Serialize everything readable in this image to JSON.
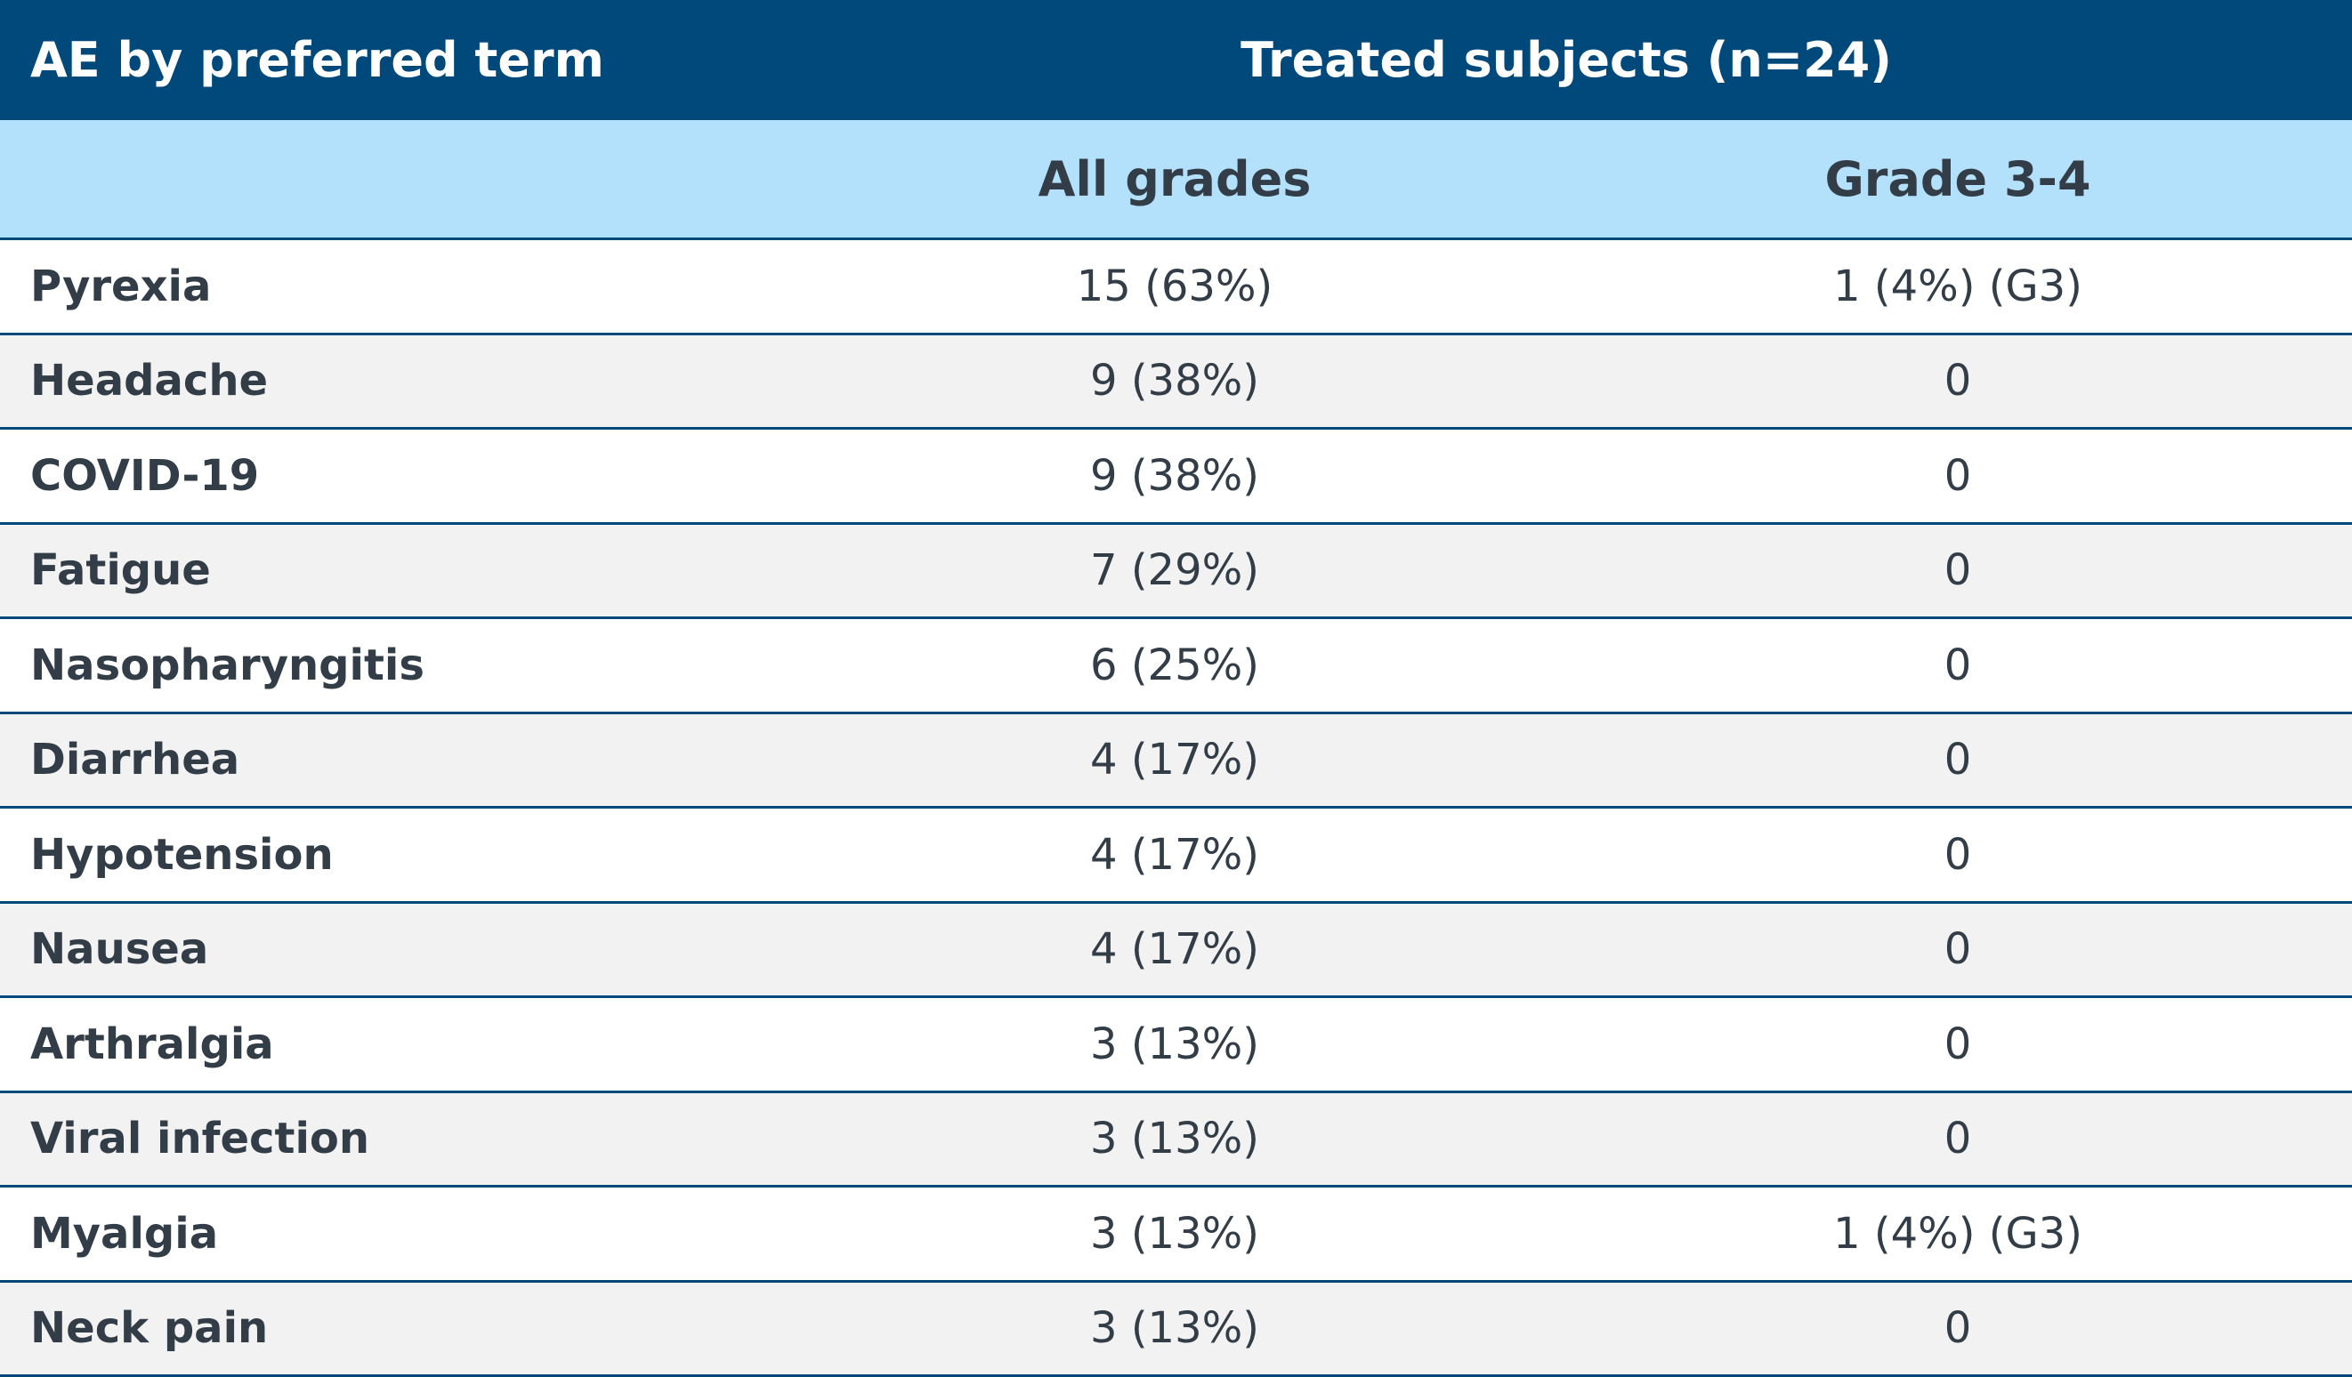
{
  "table": {
    "header": {
      "first": "AE by preferred term",
      "group": "Treated subjects (n=24)"
    },
    "subheader": [
      "All grades",
      "Grade 3-4"
    ],
    "rows": [
      [
        "Pyrexia",
        "15 (63%)",
        "1 (4%) (G3)"
      ],
      [
        "Headache",
        "9 (38%)",
        "0"
      ],
      [
        "COVID-19",
        "9 (38%)",
        "0"
      ],
      [
        "Fatigue",
        "7 (29%)",
        "0"
      ],
      [
        "Nasopharyngitis",
        "6 (25%)",
        "0"
      ],
      [
        "Diarrhea",
        "4 (17%)",
        "0"
      ],
      [
        "Hypotension",
        "4 (17%)",
        "0"
      ],
      [
        "Nausea",
        "4 (17%)",
        "0"
      ],
      [
        "Arthralgia",
        "3 (13%)",
        "0"
      ],
      [
        "Viral infection",
        "3 (13%)",
        "0"
      ],
      [
        "Myalgia",
        "3 (13%)",
        "1 (4%) (G3)"
      ],
      [
        "Neck pain",
        "3 (13%)",
        "0"
      ]
    ]
  }
}
